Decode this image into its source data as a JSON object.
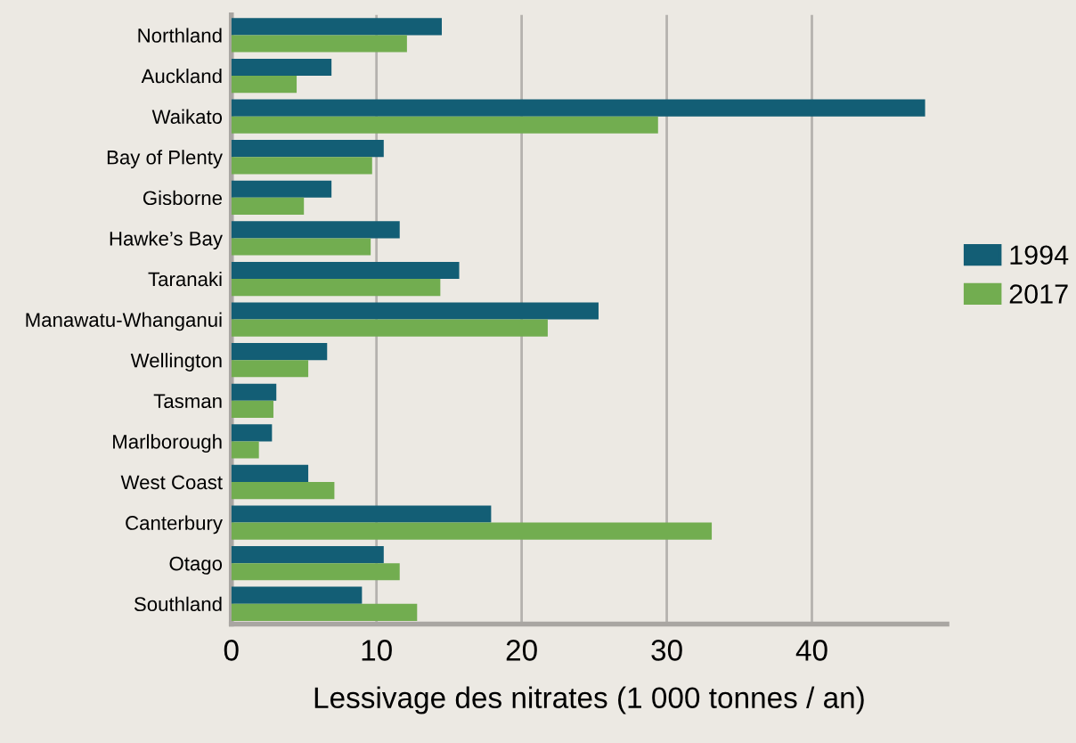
{
  "chart_data": {
    "type": "bar",
    "orientation": "horizontal",
    "xlabel": "Lessivage des nitrates (1 000 tonnes / an)",
    "categories": [
      "Northland",
      "Auckland",
      "Waikato",
      "Bay of Plenty",
      "Gisborne",
      "Hawke’s Bay",
      "Taranaki",
      "Manawatu-Whanganui",
      "Wellington",
      "Tasman",
      "Marlborough",
      "West Coast",
      "Canterbury",
      "Otago",
      "Southland"
    ],
    "series": [
      {
        "name": "1994",
        "color": "#135e75",
        "values": [
          14.5,
          6.9,
          47.8,
          10.5,
          6.9,
          11.6,
          15.7,
          25.3,
          6.6,
          3.1,
          2.8,
          5.3,
          17.9,
          10.5,
          9.0
        ]
      },
      {
        "name": "2017",
        "color": "#72ad50",
        "values": [
          12.1,
          4.5,
          29.4,
          9.7,
          5.0,
          9.6,
          14.4,
          21.8,
          5.3,
          2.9,
          1.9,
          7.1,
          33.1,
          11.6,
          12.8
        ]
      }
    ],
    "xlim": [
      0,
      49.3
    ],
    "xticks": [
      0,
      10,
      20,
      30,
      40
    ],
    "grid": "x",
    "legend": "right"
  }
}
